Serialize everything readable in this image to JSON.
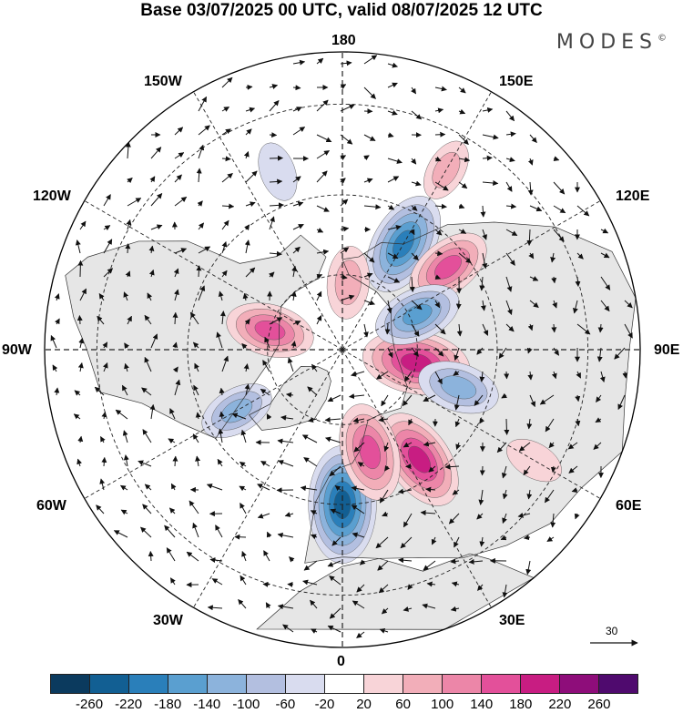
{
  "title": "Base 03/07/2025 00 UTC, valid 08/07/2025 12 UTC",
  "brand": "MODES",
  "brand_mark": "©",
  "longitude_labels": {
    "lon_180": "180",
    "lon_150e": "150E",
    "lon_120e": "120E",
    "lon_90e": "90E",
    "lon_60e": "60E",
    "lon_30e": "30E",
    "lon_0": "0",
    "lon_30w": "30W",
    "lon_60w": "60W",
    "lon_90w": "90W",
    "lon_120w": "120W",
    "lon_150w": "150W"
  },
  "reference_vector_label": "30",
  "colorbar": {
    "colors": [
      "#0b3a5e",
      "#125f93",
      "#2a7fba",
      "#5a9fd0",
      "#8cb3dc",
      "#b3bfe0",
      "#d9dcef",
      "#ffffff",
      "#f8d4d8",
      "#f2aeb9",
      "#ec86a8",
      "#e3509a",
      "#c81d82",
      "#8e0d7a",
      "#4f0a6e"
    ],
    "ticks": [
      "-260",
      "-220",
      "-180",
      "-140",
      "-100",
      "-60",
      "-20",
      "20",
      "60",
      "100",
      "140",
      "180",
      "220",
      "260"
    ]
  },
  "chart_data": {
    "type": "heatmap",
    "projection": "north polar stereographic",
    "field": "geopotential height anomaly",
    "contour_levels": [
      -260,
      -220,
      -180,
      -140,
      -100,
      -60,
      -20,
      20,
      60,
      100,
      140,
      180,
      220,
      260
    ],
    "anomaly_centers": [
      {
        "lon": 0,
        "lat": 50,
        "value": -230
      },
      {
        "lon": 150,
        "lat": 58,
        "value": -190
      },
      {
        "lon": 80,
        "lat": 70,
        "value": 200
      },
      {
        "lon": 35,
        "lat": 55,
        "value": 190
      },
      {
        "lon": 15,
        "lat": 62,
        "value": 170
      },
      {
        "lon": 128,
        "lat": 55,
        "value": 140
      },
      {
        "lon": -105,
        "lat": 70,
        "value": 140
      },
      {
        "lon": 115,
        "lat": 68,
        "value": -140
      },
      {
        "lon": 72,
        "lat": 58,
        "value": -120
      },
      {
        "lon": -60,
        "lat": 58,
        "value": -100
      },
      {
        "lon": 175,
        "lat": 72,
        "value": 90
      },
      {
        "lon": 150,
        "lat": 38,
        "value": 60
      },
      {
        "lon": 60,
        "lat": 35,
        "value": 50
      },
      {
        "lon": -160,
        "lat": 42,
        "value": -50
      }
    ],
    "reference_vector": 30
  }
}
